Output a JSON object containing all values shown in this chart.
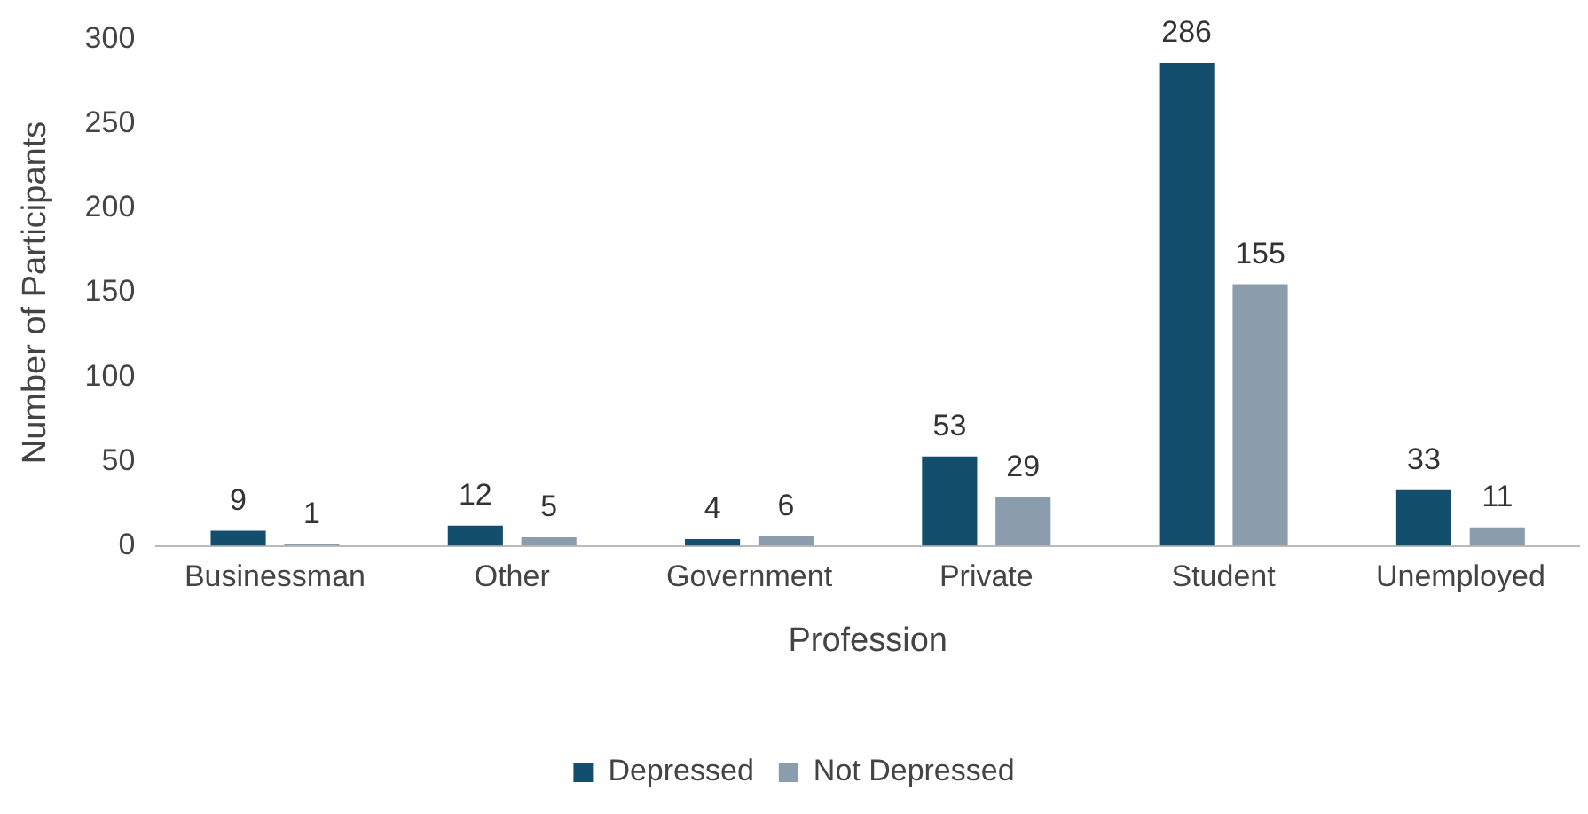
{
  "chart_data": {
    "type": "bar",
    "xlabel": "Profession",
    "ylabel": "Number of Participants",
    "categories": [
      "Businessman",
      "Other",
      "Government",
      "Private",
      "Student",
      "Unemployed"
    ],
    "series": [
      {
        "name": "Depressed",
        "color": "#134f6c",
        "values": [
          9,
          12,
          4,
          53,
          286,
          33
        ]
      },
      {
        "name": "Not Depressed",
        "color": "#8b9cac",
        "values": [
          1,
          5,
          6,
          29,
          155,
          11
        ]
      }
    ],
    "ylim": [
      0,
      300
    ],
    "yticks": [
      0,
      50,
      100,
      150,
      200,
      250,
      300
    ],
    "grid": false,
    "legend": "bottom",
    "data_labels": true
  }
}
